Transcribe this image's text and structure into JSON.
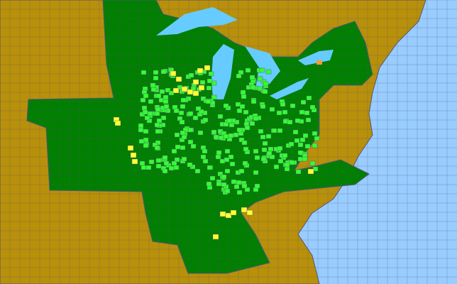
{
  "map": {
    "colors": {
      "ocean": "#99ccff",
      "lakes": "#66ccff",
      "outside_land": "#b8900a",
      "present": "#007f00",
      "highlight_bright": "#33ff33",
      "highlight_yellow": "#ffff33",
      "highlight_orange": "#ff9933",
      "borders": "#555577"
    }
  }
}
